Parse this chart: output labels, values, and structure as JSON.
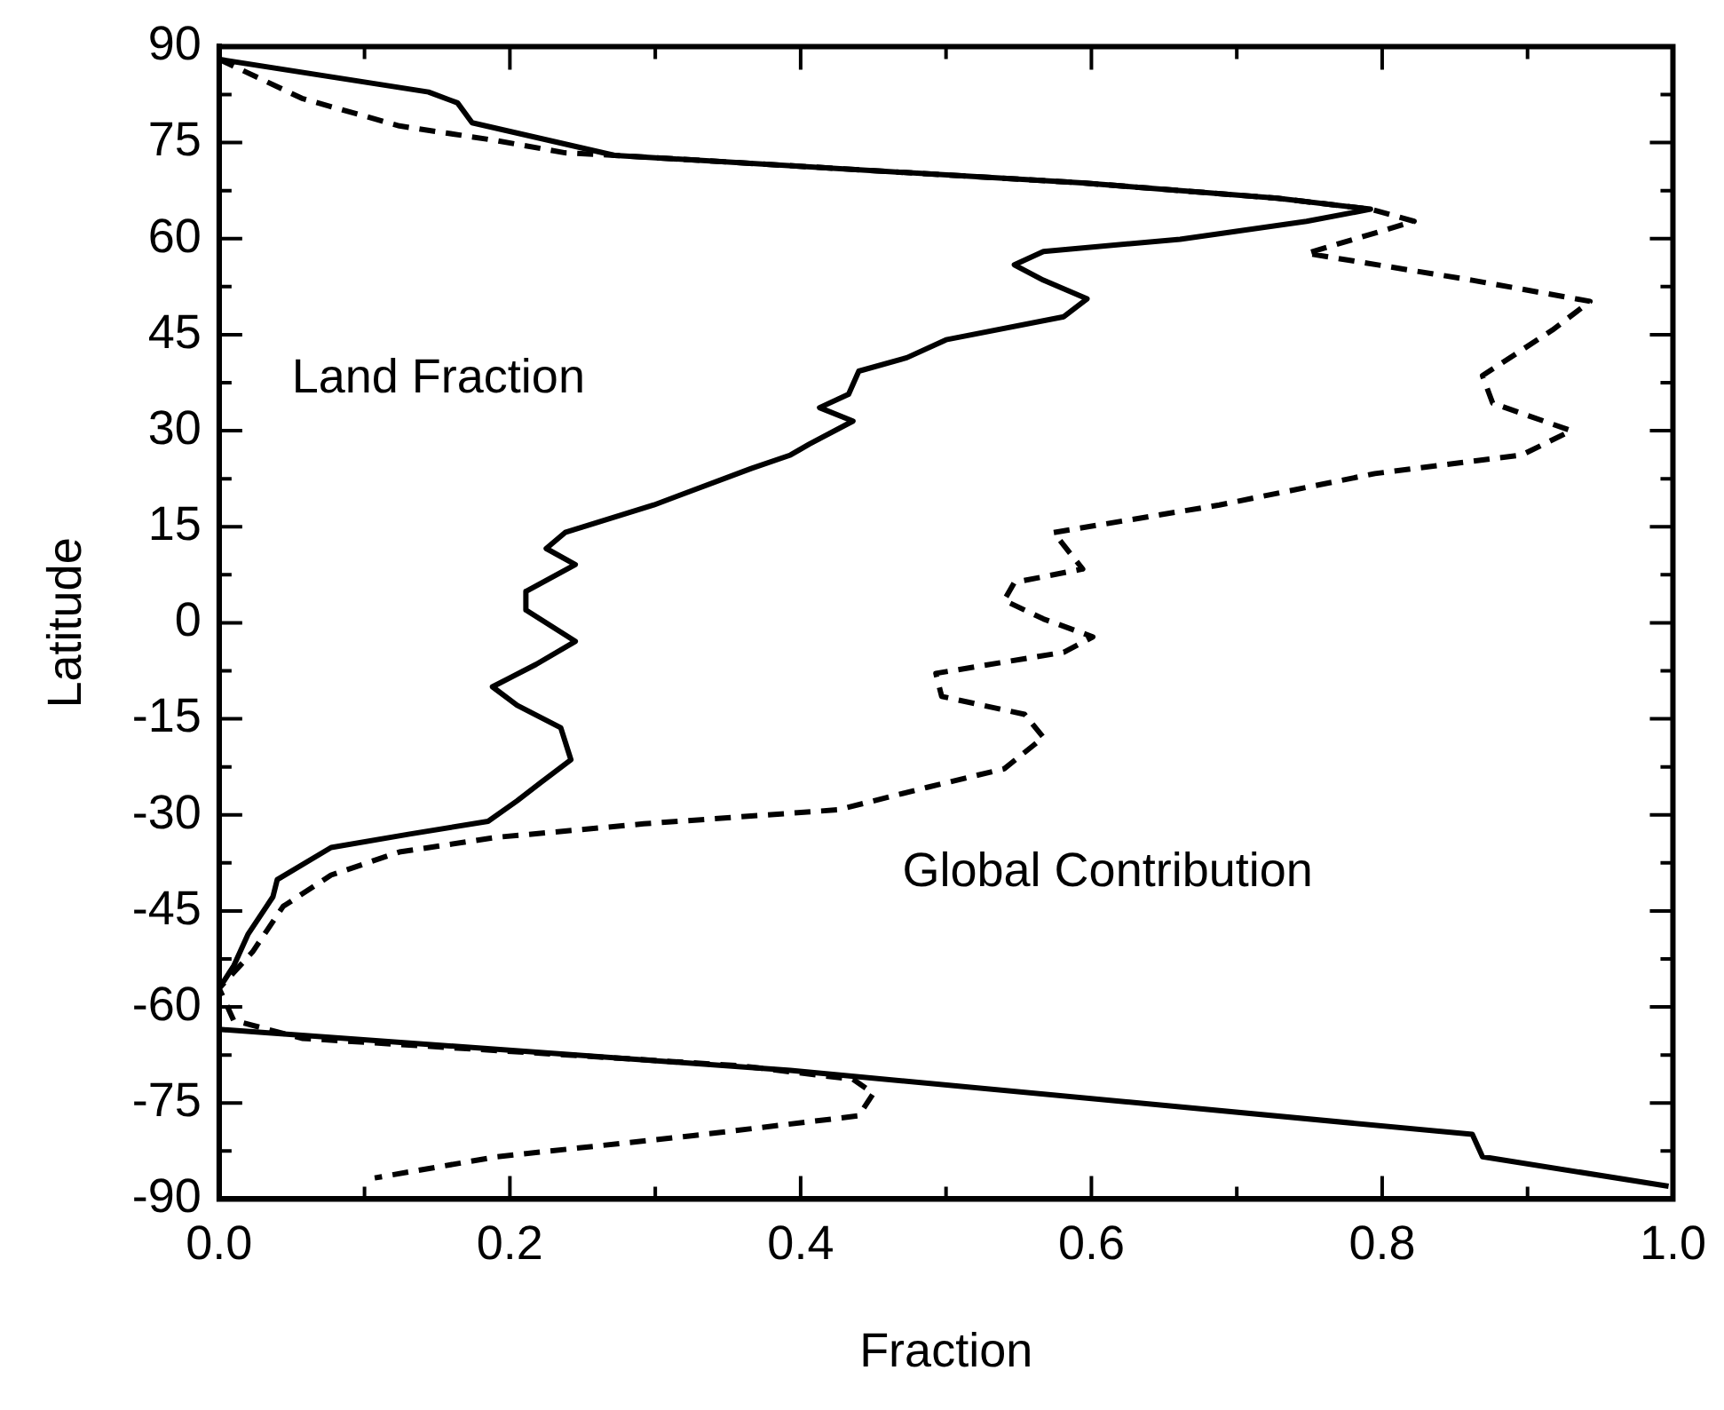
{
  "chart_data": {
    "type": "line",
    "xlabel": "Fraction",
    "ylabel": "Latitude",
    "legend": false,
    "grid": false,
    "marker": "none",
    "xlim": [
      0,
      1
    ],
    "ylim": [
      -90,
      90
    ],
    "xticks": [
      {
        "value": 0,
        "label": "0.0"
      },
      {
        "value": 0.1,
        "label": null
      },
      0.2,
      {
        "value": 0.3,
        "label": null
      },
      0.4,
      {
        "value": 0.5,
        "label": null
      },
      0.6,
      {
        "value": 0.7,
        "label": null
      },
      0.8,
      {
        "value": 0.9,
        "label": null
      },
      {
        "value": 1,
        "label": "1.0"
      }
    ],
    "yticks": [
      -90,
      {
        "value": -82.5,
        "label": null
      },
      -75,
      {
        "value": -67.5,
        "label": null
      },
      -60,
      {
        "value": -52.5,
        "label": null
      },
      -45,
      {
        "value": -37.5,
        "label": null
      },
      -30,
      {
        "value": -22.5,
        "label": null
      },
      -15,
      {
        "value": -7.5,
        "label": null
      },
      0,
      {
        "value": 7.5,
        "label": null
      },
      15,
      {
        "value": 22.5,
        "label": null
      },
      30,
      {
        "value": 37.5,
        "label": null
      },
      45,
      {
        "value": 52.5,
        "label": null
      },
      60,
      {
        "value": 67.5,
        "label": null
      },
      75,
      {
        "value": 82.5,
        "label": null
      },
      90
    ],
    "series": [
      {
        "name": "Land Fraction",
        "color": "#000000",
        "line_style": "solid",
        "x": [
          0,
          0.144,
          0.164,
          0.174,
          0.218,
          0.272,
          0.594,
          0.728,
          0.792,
          0.748,
          0.661,
          0.567,
          0.547,
          0.567,
          0.597,
          0.581,
          0.5,
          0.473,
          0.44,
          0.433,
          0.413,
          0.436,
          0.406,
          0.393,
          0.366,
          0.299,
          0.238,
          0.225,
          0.245,
          0.211,
          0.211,
          0.245,
          0.218,
          0.188,
          0.205,
          0.235,
          0.242,
          0.221,
          0.205,
          0.185,
          0.131,
          0.077,
          0.04,
          0.037,
          0.02,
          0.01,
          0,
          0,
          0.393,
          0.862,
          0.869,
          0.997
        ],
        "values": [
          88,
          82.9,
          81.2,
          78.1,
          75.8,
          73,
          68.7,
          66.3,
          64.6,
          62.7,
          59.9,
          58,
          55.9,
          53.5,
          50.6,
          47.8,
          44.2,
          41.4,
          39.3,
          35.7,
          33.6,
          31.5,
          27.9,
          26.2,
          24.1,
          18.4,
          14.1,
          11.6,
          9.1,
          4.9,
          2,
          -2.9,
          -6.5,
          -10,
          -12.9,
          -16.4,
          -21.4,
          -25,
          -27.8,
          -31,
          -33,
          -35.1,
          -40.1,
          -42.8,
          -48.6,
          -53.6,
          -57.1,
          -63.5,
          -69.9,
          -79.9,
          -83.4,
          -88
        ]
      },
      {
        "name": "Global Contribution",
        "color": "#000000",
        "line_style": "dashed",
        "x": [
          0,
          0.057,
          0.124,
          0.191,
          0.238,
          0.272,
          0.594,
          0.728,
          0.792,
          0.822,
          0.748,
          0.862,
          0.943,
          0.917,
          0.869,
          0.876,
          0.93,
          0.896,
          0.795,
          0.688,
          0.574,
          0.594,
          0.547,
          0.54,
          0.567,
          0.601,
          0.581,
          0.493,
          0.497,
          0.554,
          0.567,
          0.54,
          0.487,
          0.426,
          0.292,
          0.191,
          0.124,
          0.077,
          0.044,
          0.023,
          0,
          0.01,
          0.057,
          0.359,
          0.436,
          0.45,
          0.44,
          0.326,
          0.191,
          0.107
        ],
        "values": [
          88,
          81.9,
          77.6,
          75.3,
          73.4,
          73,
          68.7,
          66.3,
          64.6,
          62.7,
          57.7,
          53.5,
          50.2,
          45.7,
          38.6,
          34.3,
          30,
          26.2,
          23.3,
          18.4,
          14.1,
          8.4,
          6.3,
          3.5,
          0.6,
          -2.2,
          -4.6,
          -7.9,
          -11.5,
          -14.3,
          -17.9,
          -22.8,
          -25.7,
          -29.2,
          -31.4,
          -33.5,
          -35.8,
          -39.4,
          -44.3,
          -51.4,
          -57.1,
          -62.1,
          -64.9,
          -69.2,
          -71.3,
          -73.5,
          -77,
          -80.1,
          -83.4,
          -86.7
        ]
      }
    ]
  }
}
